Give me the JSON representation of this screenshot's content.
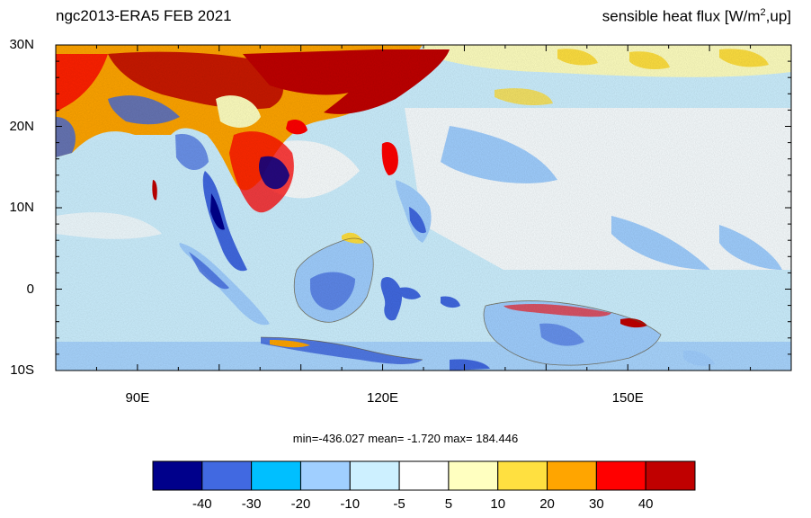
{
  "title_left": "ngc2013-ERA5  FEB 2021",
  "title_right": {
    "prefix": "sensible heat flux [W/m",
    "sup": "2",
    "suffix": ",up]"
  },
  "map": {
    "lon_range": [
      80,
      170
    ],
    "lat_range": [
      -10,
      30
    ],
    "x_ticks": [
      {
        "lon": 90,
        "label": "90E"
      },
      {
        "lon": 120,
        "label": "120E"
      },
      {
        "lon": 150,
        "label": "150E"
      }
    ],
    "y_ticks": [
      {
        "lat": 30,
        "label": "30N"
      },
      {
        "lat": 20,
        "label": "20N"
      },
      {
        "lat": 10,
        "label": "10N"
      },
      {
        "lat": 0,
        "label": "0"
      },
      {
        "lat": -10,
        "label": "10S"
      }
    ]
  },
  "stats": {
    "text": "min=-436.027  mean=  -1.720  max= 184.446"
  },
  "colorbar": {
    "colors": [
      "#00008b",
      "#4169e1",
      "#00bfff",
      "#a0cfff",
      "#cdf0ff",
      "#ffffff",
      "#ffffc0",
      "#ffe040",
      "#ffa500",
      "#ff0000",
      "#c00000"
    ],
    "labels": [
      "-40",
      "-30",
      "-20",
      "-10",
      "-5",
      "5",
      "10",
      "20",
      "30",
      "40"
    ]
  }
}
